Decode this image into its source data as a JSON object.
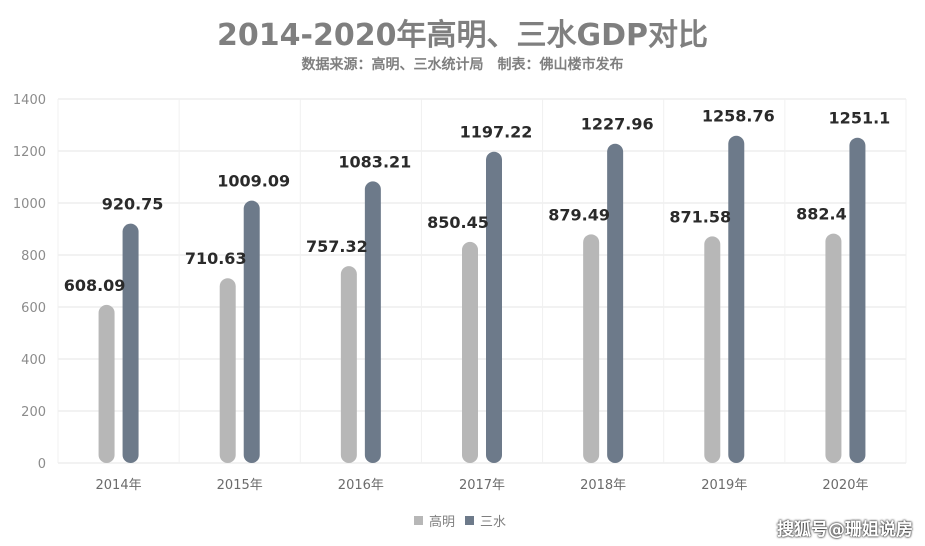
{
  "title": "2014-2020年高明、三水GDP对比",
  "subtitle": "数据来源：高明、三水统计局　制表：佛山楼市发布",
  "watermark": "搜狐号@珊姐说房",
  "colors": {
    "series1": "#b7b7b7",
    "series2": "#6d7a8a",
    "grid": "#e6e6e6"
  },
  "chart_data": {
    "type": "bar",
    "categories": [
      "2014年",
      "2015年",
      "2016年",
      "2017年",
      "2018年",
      "2019年",
      "2020年"
    ],
    "series": [
      {
        "name": "高明",
        "values": [
          608.09,
          710.63,
          757.32,
          850.45,
          879.49,
          871.58,
          882.4
        ],
        "labels": [
          "608.09",
          "710.63",
          "757.32",
          "850.45",
          "879.49",
          "871.58",
          "882.4"
        ]
      },
      {
        "name": "三水",
        "values": [
          920.75,
          1009.09,
          1083.21,
          1197.22,
          1227.96,
          1258.76,
          1251.1
        ],
        "labels": [
          "920.75",
          "1009.09",
          "1083.21",
          "1197.22",
          "1227.96",
          "1258.76",
          "1251.1"
        ]
      }
    ],
    "yticks": [
      "0",
      "200",
      "400",
      "600",
      "800",
      "1000",
      "1200",
      "1400"
    ],
    "ylim": [
      0,
      1400
    ],
    "grid": true,
    "legend_position": "bottom"
  }
}
